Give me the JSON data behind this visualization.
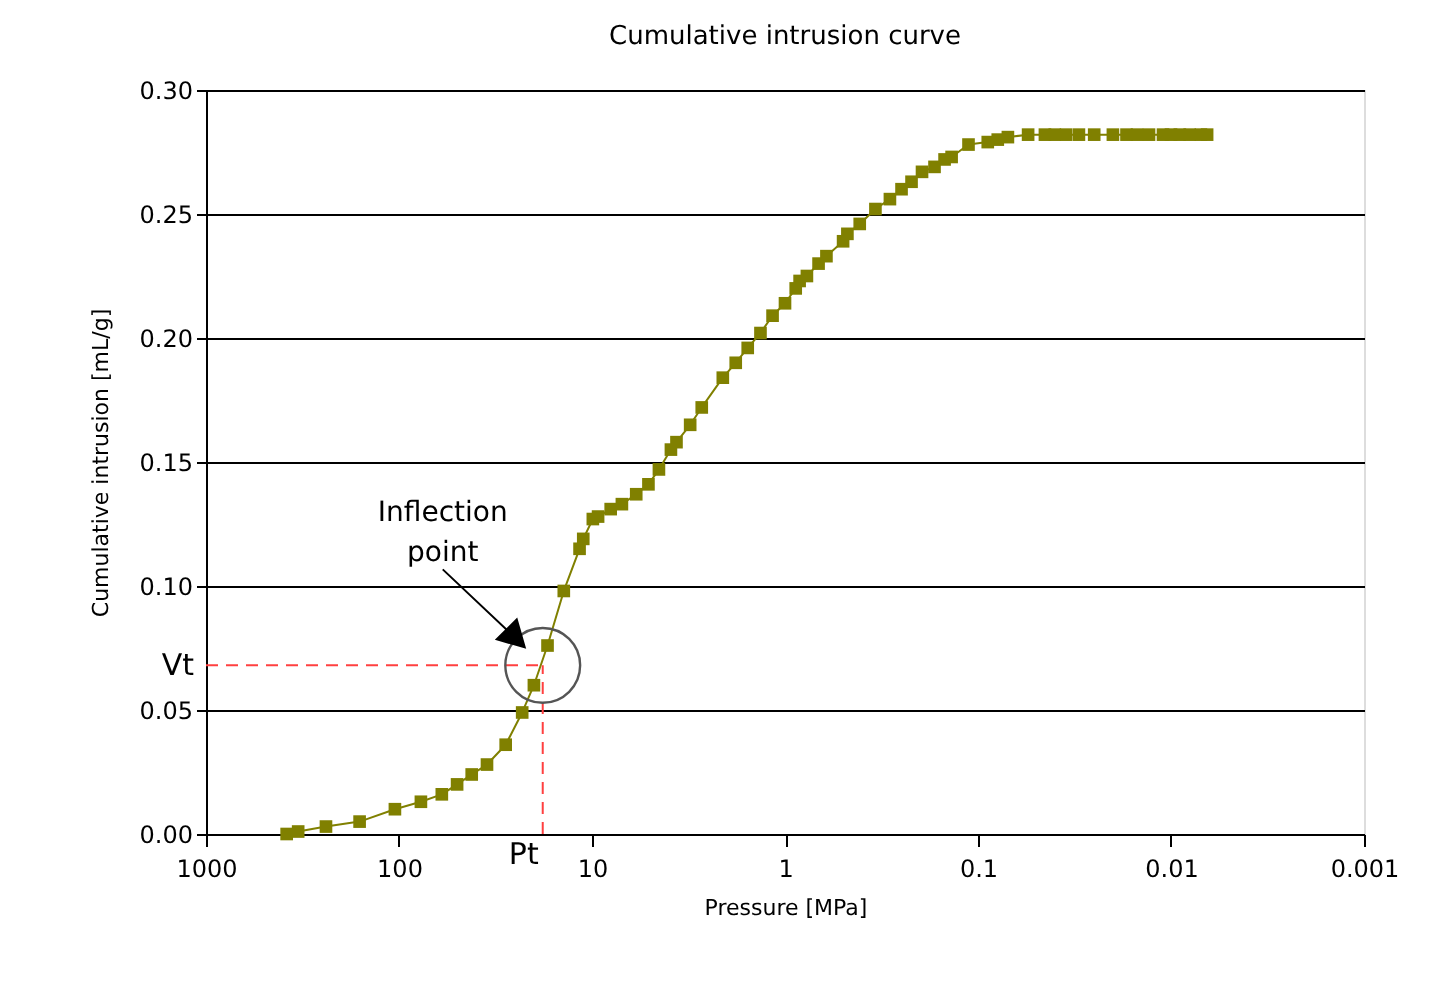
{
  "chart_data": {
    "type": "line",
    "title": "Cumulative intrusion curve",
    "xlabel": "Pressure [MPa]",
    "ylabel": "Cumulative intrusion [mL/g]",
    "log": "x",
    "xlim": [
      1000,
      0.001
    ],
    "xticks": [
      1000,
      100,
      10,
      1,
      0.1,
      0.01,
      0.001
    ],
    "ylim": [
      0,
      0.3
    ],
    "yticks": [
      {
        "value": 0,
        "label": "0.00"
      },
      0.05,
      {
        "value": 0.1,
        "label": "0.10"
      },
      0.15,
      {
        "value": 0.2,
        "label": "0.20"
      },
      0.25,
      {
        "value": 0.3,
        "label": "0.30"
      }
    ],
    "grid": "y",
    "marker": "square",
    "line_style": "solid",
    "series": [
      {
        "color": "#808000",
        "x": [
          382,
          333,
          239,
          160,
          105,
          77,
          60,
          50,
          42,
          35,
          28,
          23,
          20,
          17,
          14,
          11.6,
          11.1,
          9.9,
          9.3,
          8.0,
          7.0,
          5.9,
          5.1,
          4.5,
          3.9,
          3.65,
          3.1,
          2.7,
          2.1,
          1.8,
          1.56,
          1.34,
          1.16,
          1.0,
          0.88,
          0.84,
          0.77,
          0.67,
          0.61,
          0.5,
          0.475,
          0.41,
          0.34,
          0.286,
          0.249,
          0.221,
          0.195,
          0.168,
          0.149,
          0.137,
          0.112,
          0.089,
          0.079,
          0.07,
          0.055,
          0.045,
          0.04,
          0.035,
          0.03,
          0.025,
          0.02,
          0.017,
          0.015,
          0.013,
          0.011,
          0.01,
          0.009,
          0.008,
          0.007,
          0.0065
        ],
        "values": [
          0.0,
          0.001,
          0.003,
          0.005,
          0.01,
          0.013,
          0.016,
          0.02,
          0.024,
          0.028,
          0.036,
          0.049,
          0.06,
          0.076,
          0.098,
          0.115,
          0.119,
          0.127,
          0.128,
          0.131,
          0.133,
          0.137,
          0.141,
          0.147,
          0.155,
          0.158,
          0.165,
          0.172,
          0.184,
          0.19,
          0.196,
          0.202,
          0.209,
          0.214,
          0.22,
          0.223,
          0.225,
          0.23,
          0.233,
          0.239,
          0.242,
          0.246,
          0.252,
          0.256,
          0.26,
          0.263,
          0.267,
          0.269,
          0.272,
          0.273,
          0.278,
          0.279,
          0.28,
          0.281,
          0.282,
          0.282,
          0.282,
          0.282,
          0.282,
          0.282,
          0.282,
          0.282,
          0.282,
          0.282,
          0.282,
          0.282,
          0.282,
          0.282,
          0.282,
          0.282
        ]
      }
    ],
    "ref_lines": [
      {
        "axis": "y",
        "value": 0.068,
        "label": "Vt",
        "color": "#ff4040",
        "line_style": "dashed"
      },
      {
        "axis": "x",
        "value": 18,
        "label": "Pt",
        "color": "#ff4040",
        "line_style": "dashed"
      }
    ],
    "annotations": [
      "Inflection point"
    ]
  }
}
